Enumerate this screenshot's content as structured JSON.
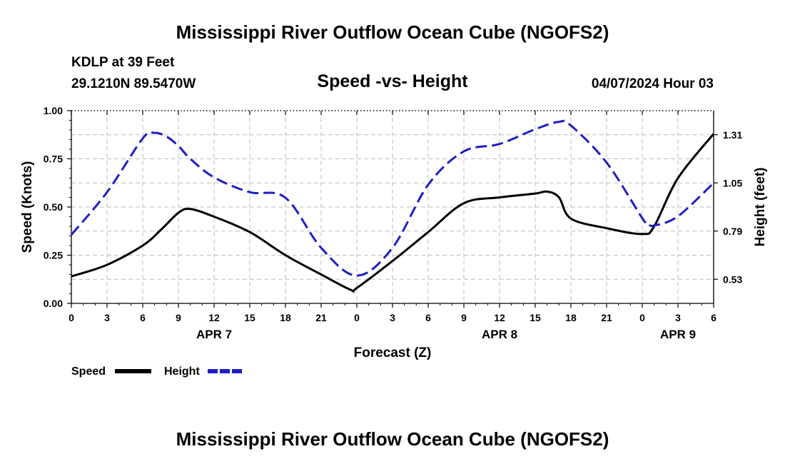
{
  "header": {
    "title": "Mississippi River Outflow Ocean Cube (NGOFS2)",
    "station": "KDLP at 39 Feet",
    "coords": "29.1210N  89.5470W",
    "subtitle": "Speed -vs- Height",
    "datetime": "04/07/2024 Hour 03"
  },
  "footer": {
    "title": "Mississippi River Outflow Ocean Cube (NGOFS2)"
  },
  "colors": {
    "speed": "#000000",
    "height": "#1e1ec8",
    "grid": "#bdbdbd",
    "axis": "#000000"
  },
  "chart_data": {
    "type": "line",
    "title": "Speed -vs- Height",
    "xlabel": "Forecast (Z)",
    "ylabel": "Speed (Knots)",
    "y2label": "Height (feet)",
    "xlim": [
      0,
      54
    ],
    "ylim": [
      0,
      1
    ],
    "y2lim": [
      0.4,
      1.44
    ],
    "x_ticks": [
      0,
      3,
      6,
      9,
      12,
      15,
      18,
      21,
      24,
      27,
      30,
      33,
      36,
      39,
      42,
      45,
      48,
      51,
      54
    ],
    "x_tick_labels": [
      "0",
      "3",
      "6",
      "9",
      "12",
      "15",
      "18",
      "21",
      "0",
      "3",
      "6",
      "9",
      "12",
      "15",
      "18",
      "21",
      "0",
      "3",
      "6"
    ],
    "day_labels": [
      {
        "label": "APR 7",
        "x": 12
      },
      {
        "label": "APR 8",
        "x": 36
      },
      {
        "label": "APR 9",
        "x": 51
      }
    ],
    "y_ticks": [
      0,
      0.25,
      0.5,
      0.75,
      1.0
    ],
    "y_tick_labels": [
      "0.00",
      "0.25",
      "0.50",
      "0.75",
      "1.00"
    ],
    "y2_ticks": [
      0.53,
      0.79,
      1.05,
      1.31
    ],
    "y2_tick_labels": [
      "0.53",
      "0.79",
      "1.05",
      "1.31"
    ],
    "series": [
      {
        "name": "Speed",
        "axis": "left",
        "style": "solid",
        "x": [
          0,
          3,
          6,
          7.5,
          9,
          10,
          12,
          15,
          18,
          21,
          23.5,
          24,
          27,
          30,
          33,
          36,
          39,
          40,
          41,
          42,
          45,
          48,
          49,
          51,
          54
        ],
        "values": [
          0.14,
          0.2,
          0.3,
          0.38,
          0.47,
          0.49,
          0.45,
          0.37,
          0.25,
          0.15,
          0.07,
          0.08,
          0.22,
          0.37,
          0.52,
          0.55,
          0.57,
          0.58,
          0.55,
          0.44,
          0.39,
          0.36,
          0.4,
          0.65,
          0.88
        ]
      },
      {
        "name": "Height",
        "axis": "right",
        "style": "dashed",
        "x": [
          0,
          3,
          6,
          7,
          8,
          9,
          10,
          12,
          15,
          18,
          21,
          24,
          27,
          30,
          33,
          36,
          39,
          41,
          42,
          45,
          48,
          48.5,
          49,
          51,
          54
        ],
        "values": [
          0.77,
          1.0,
          1.29,
          1.32,
          1.3,
          1.25,
          1.18,
          1.08,
          1.0,
          0.97,
          0.7,
          0.55,
          0.7,
          1.04,
          1.22,
          1.26,
          1.34,
          1.38,
          1.36,
          1.16,
          0.86,
          0.83,
          0.82,
          0.87,
          1.05
        ]
      }
    ],
    "legend": [
      {
        "label": "Speed",
        "style": "solid"
      },
      {
        "label": "Height",
        "style": "dashed"
      }
    ],
    "grid": true,
    "legend_position": "bottom-left"
  }
}
